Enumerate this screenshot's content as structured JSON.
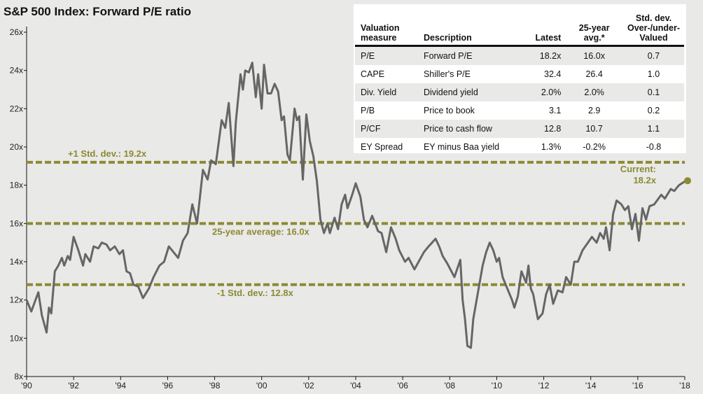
{
  "chart_data": {
    "type": "line",
    "title": "S&P 500 Index: Forward P/E ratio",
    "xlabel": "",
    "ylabel": "",
    "xlim": [
      1990,
      2018
    ],
    "ylim": [
      8,
      26
    ],
    "x_ticks": [
      1990,
      1992,
      1994,
      1996,
      1998,
      2000,
      2002,
      2004,
      2006,
      2008,
      2010,
      2012,
      2014,
      2016,
      2018
    ],
    "x_tick_labels": [
      "'90",
      "'92",
      "'94",
      "'96",
      "'98",
      "'00",
      "'02",
      "'04",
      "'06",
      "'08",
      "'10",
      "'12",
      "'14",
      "'16",
      "'18"
    ],
    "y_ticks": [
      8,
      10,
      12,
      14,
      16,
      18,
      20,
      22,
      24,
      26
    ],
    "y_tick_labels": [
      "8x",
      "10x",
      "12x",
      "14x",
      "16x",
      "18x",
      "20x",
      "22x",
      "24x",
      "26x"
    ],
    "reference_lines": [
      {
        "label": "+1 Std. dev.: 19.2x",
        "value": 19.2
      },
      {
        "label": "25-year average: 16.0x",
        "value": 16.0
      },
      {
        "label": "-1 Std. dev.: 12.8x",
        "value": 12.8
      }
    ],
    "current": {
      "label_line1": "Current:",
      "label_line2": "18.2x",
      "x": 2018.0,
      "value": 18.2
    },
    "colors": {
      "line": "#666666",
      "reference": "#8c8a34"
    },
    "series": [
      {
        "name": "Forward P/E",
        "points": [
          [
            1990.0,
            12.0
          ],
          [
            1990.2,
            11.4
          ],
          [
            1990.35,
            11.9
          ],
          [
            1990.5,
            12.4
          ],
          [
            1990.65,
            11.2
          ],
          [
            1990.85,
            10.3
          ],
          [
            1990.95,
            11.6
          ],
          [
            1991.05,
            11.3
          ],
          [
            1991.2,
            13.5
          ],
          [
            1991.35,
            13.8
          ],
          [
            1991.5,
            14.2
          ],
          [
            1991.6,
            13.8
          ],
          [
            1991.75,
            14.3
          ],
          [
            1991.85,
            14.1
          ],
          [
            1992.0,
            15.3
          ],
          [
            1992.2,
            14.6
          ],
          [
            1992.4,
            13.8
          ],
          [
            1992.5,
            14.4
          ],
          [
            1992.7,
            14.0
          ],
          [
            1992.85,
            14.8
          ],
          [
            1993.05,
            14.7
          ],
          [
            1993.2,
            15.0
          ],
          [
            1993.4,
            14.9
          ],
          [
            1993.55,
            14.6
          ],
          [
            1993.75,
            14.8
          ],
          [
            1993.95,
            14.4
          ],
          [
            1994.1,
            14.6
          ],
          [
            1994.25,
            13.5
          ],
          [
            1994.4,
            13.4
          ],
          [
            1994.55,
            12.8
          ],
          [
            1994.75,
            12.7
          ],
          [
            1994.95,
            12.1
          ],
          [
            1995.2,
            12.6
          ],
          [
            1995.4,
            13.2
          ],
          [
            1995.65,
            13.8
          ],
          [
            1995.85,
            14.0
          ],
          [
            1996.05,
            14.8
          ],
          [
            1996.25,
            14.5
          ],
          [
            1996.45,
            14.2
          ],
          [
            1996.65,
            15.1
          ],
          [
            1996.85,
            15.5
          ],
          [
            1997.05,
            17.0
          ],
          [
            1997.25,
            16.0
          ],
          [
            1997.5,
            18.8
          ],
          [
            1997.7,
            18.3
          ],
          [
            1997.85,
            19.3
          ],
          [
            1998.05,
            19.1
          ],
          [
            1998.3,
            21.4
          ],
          [
            1998.45,
            21.0
          ],
          [
            1998.6,
            22.3
          ],
          [
            1998.8,
            19.0
          ],
          [
            1998.9,
            21.3
          ],
          [
            1999.1,
            23.8
          ],
          [
            1999.2,
            23.0
          ],
          [
            1999.3,
            24.0
          ],
          [
            1999.45,
            23.9
          ],
          [
            1999.6,
            24.4
          ],
          [
            1999.75,
            22.6
          ],
          [
            1999.85,
            23.8
          ],
          [
            2000.0,
            22.0
          ],
          [
            2000.1,
            24.3
          ],
          [
            2000.25,
            22.8
          ],
          [
            2000.4,
            22.8
          ],
          [
            2000.55,
            23.3
          ],
          [
            2000.7,
            22.9
          ],
          [
            2000.85,
            21.4
          ],
          [
            2000.95,
            21.6
          ],
          [
            2001.1,
            19.6
          ],
          [
            2001.2,
            19.3
          ],
          [
            2001.4,
            22.0
          ],
          [
            2001.5,
            21.4
          ],
          [
            2001.6,
            21.6
          ],
          [
            2001.75,
            18.3
          ],
          [
            2001.9,
            21.7
          ],
          [
            2002.05,
            20.3
          ],
          [
            2002.2,
            19.5
          ],
          [
            2002.35,
            18.2
          ],
          [
            2002.5,
            16.2
          ],
          [
            2002.65,
            15.5
          ],
          [
            2002.8,
            16.0
          ],
          [
            2002.9,
            15.5
          ],
          [
            2003.1,
            16.3
          ],
          [
            2003.25,
            15.7
          ],
          [
            2003.4,
            17.0
          ],
          [
            2003.55,
            17.5
          ],
          [
            2003.65,
            16.8
          ],
          [
            2003.85,
            17.5
          ],
          [
            2004.0,
            18.1
          ],
          [
            2004.2,
            17.4
          ],
          [
            2004.35,
            16.2
          ],
          [
            2004.5,
            15.8
          ],
          [
            2004.7,
            16.4
          ],
          [
            2004.95,
            15.6
          ],
          [
            2005.1,
            15.5
          ],
          [
            2005.3,
            14.5
          ],
          [
            2005.5,
            15.8
          ],
          [
            2005.7,
            15.2
          ],
          [
            2005.85,
            14.6
          ],
          [
            2006.1,
            14.0
          ],
          [
            2006.25,
            14.2
          ],
          [
            2006.5,
            13.6
          ],
          [
            2006.9,
            14.5
          ],
          [
            2007.1,
            14.8
          ],
          [
            2007.4,
            15.2
          ],
          [
            2007.55,
            14.8
          ],
          [
            2007.7,
            14.3
          ],
          [
            2007.9,
            13.9
          ],
          [
            2008.2,
            13.2
          ],
          [
            2008.45,
            14.1
          ],
          [
            2008.55,
            12.0
          ],
          [
            2008.65,
            11.0
          ],
          [
            2008.75,
            9.6
          ],
          [
            2008.9,
            9.5
          ],
          [
            2009.0,
            11.0
          ],
          [
            2009.2,
            12.4
          ],
          [
            2009.4,
            13.8
          ],
          [
            2009.55,
            14.5
          ],
          [
            2009.7,
            15.0
          ],
          [
            2009.85,
            14.6
          ],
          [
            2010.0,
            14.0
          ],
          [
            2010.1,
            14.2
          ],
          [
            2010.25,
            13.2
          ],
          [
            2010.45,
            12.6
          ],
          [
            2010.65,
            12.0
          ],
          [
            2010.75,
            11.6
          ],
          [
            2010.9,
            12.2
          ],
          [
            2011.05,
            13.5
          ],
          [
            2011.25,
            12.9
          ],
          [
            2011.35,
            13.8
          ],
          [
            2011.45,
            12.6
          ],
          [
            2011.55,
            12.3
          ],
          [
            2011.75,
            11.0
          ],
          [
            2011.95,
            11.3
          ],
          [
            2012.1,
            12.3
          ],
          [
            2012.25,
            12.8
          ],
          [
            2012.4,
            11.8
          ],
          [
            2012.6,
            12.5
          ],
          [
            2012.8,
            12.4
          ],
          [
            2012.95,
            13.2
          ],
          [
            2013.15,
            12.8
          ],
          [
            2013.3,
            14.0
          ],
          [
            2013.45,
            14.0
          ],
          [
            2013.65,
            14.6
          ],
          [
            2014.05,
            15.3
          ],
          [
            2014.25,
            15.0
          ],
          [
            2014.4,
            15.5
          ],
          [
            2014.55,
            15.2
          ],
          [
            2014.65,
            15.8
          ],
          [
            2014.8,
            14.6
          ],
          [
            2014.95,
            16.5
          ],
          [
            2015.1,
            17.2
          ],
          [
            2015.3,
            17.0
          ],
          [
            2015.45,
            16.7
          ],
          [
            2015.6,
            16.9
          ],
          [
            2015.75,
            15.7
          ],
          [
            2015.9,
            16.5
          ],
          [
            2016.05,
            15.1
          ],
          [
            2016.2,
            16.8
          ],
          [
            2016.35,
            16.2
          ],
          [
            2016.5,
            16.9
          ],
          [
            2016.7,
            17.0
          ],
          [
            2017.0,
            17.5
          ],
          [
            2017.15,
            17.3
          ],
          [
            2017.4,
            17.8
          ],
          [
            2017.55,
            17.7
          ],
          [
            2017.75,
            18.0
          ],
          [
            2018.0,
            18.2
          ]
        ]
      }
    ]
  },
  "table": {
    "headers": {
      "measure_1": "Valuation",
      "measure_2": "measure",
      "description": "Description",
      "latest": "Latest",
      "avg_1": "25-year",
      "avg_2": "avg.*",
      "std_1": "Std. dev.",
      "std_2": "Over-/under-",
      "std_3": "Valued"
    },
    "rows": [
      {
        "measure": "P/E",
        "description": "Forward P/E",
        "latest": "18.2x",
        "avg": "16.0x",
        "std": "0.7"
      },
      {
        "measure": "CAPE",
        "description": "Shiller's P/E",
        "latest": "32.4",
        "avg": "26.4",
        "std": "1.0"
      },
      {
        "measure": "Div. Yield",
        "description": "Dividend yield",
        "latest": "2.0%",
        "avg": "2.0%",
        "std": "0.1"
      },
      {
        "measure": "P/B",
        "description": "Price to book",
        "latest": "3.1",
        "avg": "2.9",
        "std": "0.2"
      },
      {
        "measure": "P/CF",
        "description": "Price to cash flow",
        "latest": "12.8",
        "avg": "10.7",
        "std": "1.1"
      },
      {
        "measure": "EY Spread",
        "description": "EY minus Baa yield",
        "latest": "1.3%",
        "avg": "-0.2%",
        "std": "-0.8"
      }
    ]
  }
}
